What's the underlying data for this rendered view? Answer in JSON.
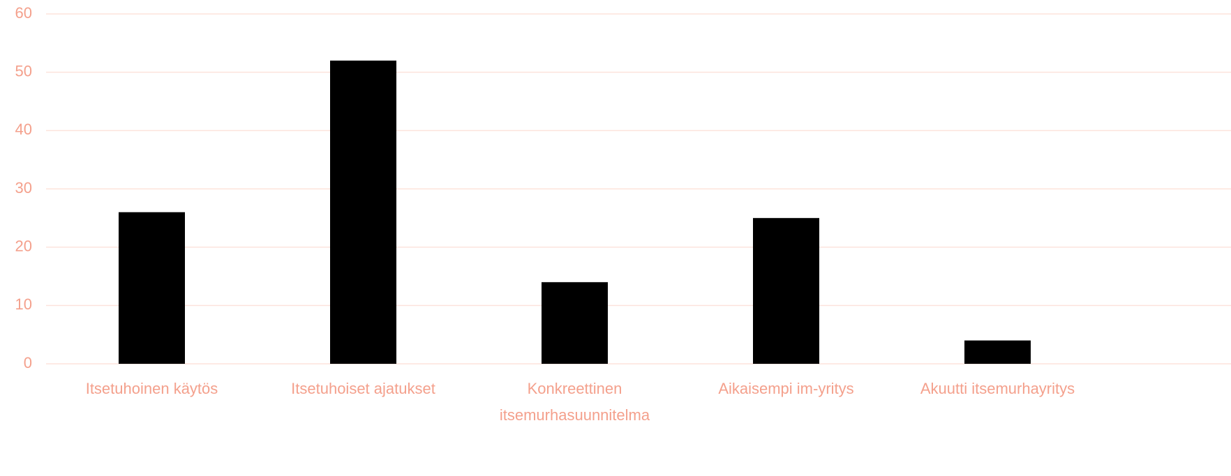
{
  "chart_data": {
    "type": "bar",
    "categories": [
      "Itsetuhoinen käytös",
      "Itsetuhoiset ajatukset",
      "Konkreettinen itsemurhasuunnitelma",
      "Aikaisempi im-yritys",
      "Akuutti itsemurhayritys"
    ],
    "values": [
      26,
      52,
      14,
      25,
      4
    ],
    "color": "#000000",
    "ylim": [
      0,
      60
    ],
    "yticks": [
      0,
      10,
      20,
      30,
      40,
      50,
      60
    ],
    "grid": true
  }
}
